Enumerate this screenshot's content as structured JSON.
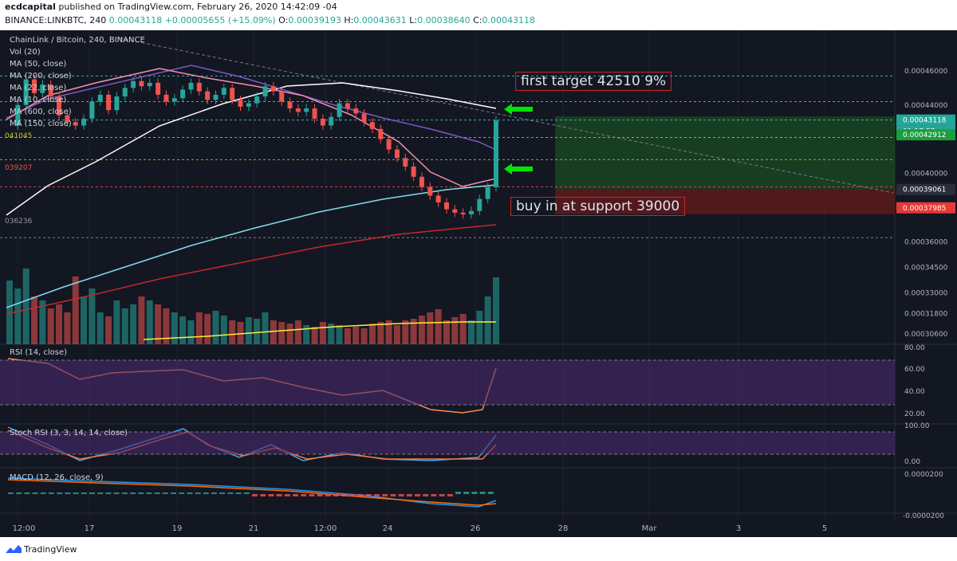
{
  "header": {
    "line1_author": "ecdcapital",
    "line1_rest": " published on TradingView.com, February 26, 2020 14:42:09 -04",
    "line2_symbol": "BINANCE:LINKBTC, 240",
    "line2_price": "0.00043118",
    "line2_change": "+0.00005655 (+15.09%)",
    "line2_o_label": "O:",
    "line2_o": "0.00039193",
    "line2_h_label": "H:",
    "line2_h": "0.00043631",
    "line2_l_label": "L:",
    "line2_l": "0.00038640",
    "line2_c_label": "C:",
    "line2_c": "0.00043118"
  },
  "legend": {
    "title": "ChainLink / Bitcoin, 240, BINANCE",
    "vol": "Vol (20)",
    "ma50": "MA (50, close)",
    "ma200": "MA (200, close)",
    "ma22": "MA (22, close)",
    "ma10": "MA (10, close)",
    "ma600": "MA (600, close)",
    "ma150": "MA (150, close)",
    "rsi": "RSI (14, close)",
    "stoch": "Stoch RSI (3, 3, 14, 14, close)",
    "macd": "MACD (12, 26, close, 9)"
  },
  "annotations": {
    "target": "first target 42510 9%",
    "buy": "buy in at support 39000"
  },
  "left_levels": {
    "l1": "041045",
    "l2": "039207",
    "l3": "036236"
  },
  "price_axis": {
    "ticks": [
      "0.00046000",
      "0.00044000",
      "0.00040000",
      "0.00036000",
      "0.00034500",
      "0.00033000",
      "0.00031800",
      "0.00030600"
    ],
    "tag_last": "0.00043118",
    "tag_countdown": "01:17:57",
    "tag_target": "0.00042912",
    "tag_entry": "0.00039061",
    "tag_stop": "0.00037985"
  },
  "rsi_axis": [
    "80.00",
    "60.00",
    "40.00",
    "20.00"
  ],
  "stoch_axis": [
    "100.00",
    "0.00"
  ],
  "macd_axis": [
    "0.0000200",
    "-0.0000200"
  ],
  "time_axis": [
    "12:00",
    "17",
    "19",
    "21",
    "12:00",
    "24",
    "26",
    "28",
    "Mar",
    "3",
    "5"
  ],
  "footer": {
    "brand": "TradingView"
  },
  "colors": {
    "background": "#131722",
    "up": "#26a69a",
    "down": "#ef5350",
    "long_zone": "#1b5e20",
    "stop_zone": "#6d1b1b",
    "arrow": "#00e600",
    "rsi_band": "#4a2a6e"
  },
  "chart_data": {
    "type": "candlestick",
    "title": "ChainLink / Bitcoin, 240, BINANCE",
    "interval": "240",
    "close_series": [
      0.000428,
      0.00044,
      0.000455,
      0.000447,
      0.000452,
      0.000445,
      0.000434,
      0.00043,
      0.000428,
      0.000432,
      0.000442,
      0.000446,
      0.000437,
      0.000445,
      0.00045,
      0.000454,
      0.000451,
      0.000453,
      0.000446,
      0.000442,
      0.000444,
      0.000449,
      0.000453,
      0.000448,
      0.000443,
      0.000446,
      0.00045,
      0.000443,
      0.000439,
      0.000441,
      0.000445,
      0.000451,
      0.000448,
      0.000442,
      0.000438,
      0.000436,
      0.000438,
      0.000432,
      0.000428,
      0.000433,
      0.000441,
      0.000438,
      0.000435,
      0.00043,
      0.000426,
      0.00042,
      0.000414,
      0.000409,
      0.000404,
      0.000398,
      0.000392,
      0.000387,
      0.000383,
      0.000379,
      0.000377,
      0.000376,
      0.000378,
      0.000385,
      0.000392,
      0.000431
    ],
    "last": {
      "open": 0.00039193,
      "high": 0.00043631,
      "low": 0.0003864,
      "close": 0.00043118,
      "change": 5.655e-05,
      "change_pct": 15.09
    },
    "levels": {
      "target": 0.00042912,
      "entry": 0.00039061,
      "stop": 0.00037985,
      "support": 0.00036236,
      "resistance1": 0.00041045,
      "resistance2": 0.00039207
    },
    "price_ticks": [
      0.00046,
      0.00044,
      0.0004,
      0.00036,
      0.000345,
      0.00033,
      0.000318,
      0.000306
    ],
    "rsi": {
      "range": [
        20,
        80
      ],
      "bands": [
        70,
        30
      ],
      "last": 62
    },
    "stoch_rsi": {
      "range": [
        0,
        100
      ],
      "bands": [
        80,
        20
      ]
    },
    "macd": {
      "range": [
        -2e-05,
        2e-05
      ]
    },
    "x_labels": [
      "12:00",
      "17",
      "19",
      "21",
      "12:00",
      "24",
      "26",
      "28",
      "Mar",
      "3",
      "5"
    ]
  }
}
